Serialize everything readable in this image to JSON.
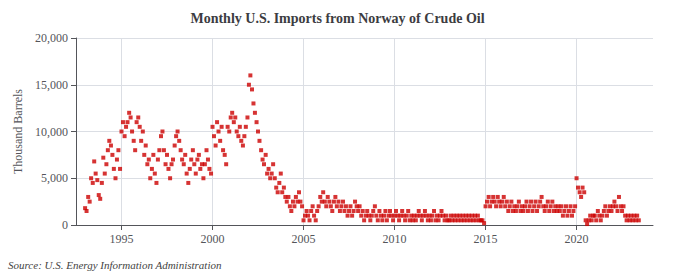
{
  "chart_data": {
    "type": "scatter",
    "title": "Monthly U.S. Imports from Norway of Crude Oil",
    "ylabel": "Thousand Barrels",
    "annotation": "Source: U.S. Energy Information Administration",
    "color": "#cc0000",
    "marker": "square",
    "grid": true,
    "xlim": [
      1992.5,
      2024.2
    ],
    "xticks": [
      1995,
      2000,
      2005,
      2010,
      2015,
      2020
    ],
    "ylim": [
      0,
      20000
    ],
    "yticks": [
      0,
      {
        "value": 5000,
        "label": "5,000"
      },
      {
        "value": 10000,
        "label": "10,000"
      },
      {
        "value": 15000,
        "label": "15,000"
      },
      {
        "value": 20000,
        "label": "20,000"
      }
    ],
    "x": [
      1993.0,
      1993.08,
      1993.17,
      1993.25,
      1993.33,
      1993.42,
      1993.5,
      1993.58,
      1993.67,
      1993.75,
      1993.83,
      1993.92,
      1994.0,
      1994.08,
      1994.17,
      1994.25,
      1994.33,
      1994.42,
      1994.5,
      1994.58,
      1994.67,
      1994.75,
      1994.83,
      1994.92,
      1995.0,
      1995.08,
      1995.17,
      1995.25,
      1995.33,
      1995.42,
      1995.5,
      1995.58,
      1995.67,
      1995.75,
      1995.83,
      1995.92,
      1996.0,
      1996.08,
      1996.17,
      1996.25,
      1996.33,
      1996.42,
      1996.5,
      1996.58,
      1996.67,
      1996.75,
      1996.83,
      1996.92,
      1997.0,
      1997.08,
      1997.17,
      1997.25,
      1997.33,
      1997.42,
      1997.5,
      1997.58,
      1997.67,
      1997.75,
      1997.83,
      1997.92,
      1998.0,
      1998.08,
      1998.17,
      1998.25,
      1998.33,
      1998.42,
      1998.5,
      1998.58,
      1998.67,
      1998.75,
      1998.83,
      1998.92,
      1999.0,
      1999.08,
      1999.17,
      1999.25,
      1999.33,
      1999.42,
      1999.5,
      1999.58,
      1999.67,
      1999.75,
      1999.83,
      1999.92,
      2000.0,
      2000.08,
      2000.17,
      2000.25,
      2000.33,
      2000.42,
      2000.5,
      2000.58,
      2000.67,
      2000.75,
      2000.83,
      2000.92,
      2001.0,
      2001.08,
      2001.17,
      2001.25,
      2001.33,
      2001.42,
      2001.5,
      2001.58,
      2001.67,
      2001.75,
      2001.83,
      2001.92,
      2002.0,
      2002.08,
      2002.17,
      2002.25,
      2002.33,
      2002.42,
      2002.5,
      2002.58,
      2002.67,
      2002.75,
      2002.83,
      2002.92,
      2003.0,
      2003.08,
      2003.17,
      2003.25,
      2003.33,
      2003.42,
      2003.5,
      2003.58,
      2003.67,
      2003.75,
      2003.83,
      2003.92,
      2004.0,
      2004.08,
      2004.17,
      2004.25,
      2004.33,
      2004.42,
      2004.5,
      2004.58,
      2004.67,
      2004.75,
      2004.83,
      2004.92,
      2005.0,
      2005.08,
      2005.17,
      2005.25,
      2005.33,
      2005.42,
      2005.5,
      2005.58,
      2005.67,
      2005.75,
      2005.83,
      2005.92,
      2006.0,
      2006.08,
      2006.17,
      2006.25,
      2006.33,
      2006.42,
      2006.5,
      2006.58,
      2006.67,
      2006.75,
      2006.83,
      2006.92,
      2007.0,
      2007.08,
      2007.17,
      2007.25,
      2007.33,
      2007.42,
      2007.5,
      2007.58,
      2007.67,
      2007.75,
      2007.83,
      2007.92,
      2008.0,
      2008.08,
      2008.17,
      2008.25,
      2008.33,
      2008.42,
      2008.5,
      2008.58,
      2008.67,
      2008.75,
      2008.83,
      2008.92,
      2009.0,
      2009.08,
      2009.17,
      2009.25,
      2009.33,
      2009.42,
      2009.5,
      2009.58,
      2009.67,
      2009.75,
      2009.83,
      2009.92,
      2010.0,
      2010.08,
      2010.17,
      2010.25,
      2010.33,
      2010.42,
      2010.5,
      2010.58,
      2010.67,
      2010.75,
      2010.83,
      2010.92,
      2011.0,
      2011.08,
      2011.17,
      2011.25,
      2011.33,
      2011.42,
      2011.5,
      2011.58,
      2011.67,
      2011.75,
      2011.83,
      2011.92,
      2012.0,
      2012.08,
      2012.17,
      2012.25,
      2012.33,
      2012.42,
      2012.5,
      2012.58,
      2012.67,
      2012.75,
      2012.83,
      2012.92,
      2013.0,
      2013.08,
      2013.17,
      2013.25,
      2013.33,
      2013.42,
      2013.5,
      2013.58,
      2013.67,
      2013.75,
      2013.83,
      2013.92,
      2014.0,
      2014.08,
      2014.17,
      2014.25,
      2014.33,
      2014.42,
      2014.5,
      2014.58,
      2014.67,
      2014.75,
      2014.83,
      2014.92,
      2015.0,
      2015.08,
      2015.17,
      2015.25,
      2015.33,
      2015.42,
      2015.5,
      2015.58,
      2015.67,
      2015.75,
      2015.83,
      2015.92,
      2016.0,
      2016.08,
      2016.17,
      2016.25,
      2016.33,
      2016.42,
      2016.5,
      2016.58,
      2016.67,
      2016.75,
      2016.83,
      2016.92,
      2017.0,
      2017.08,
      2017.17,
      2017.25,
      2017.33,
      2017.42,
      2017.5,
      2017.58,
      2017.67,
      2017.75,
      2017.83,
      2017.92,
      2018.0,
      2018.08,
      2018.17,
      2018.25,
      2018.33,
      2018.42,
      2018.5,
      2018.58,
      2018.67,
      2018.75,
      2018.83,
      2018.92,
      2019.0,
      2019.08,
      2019.17,
      2019.25,
      2019.33,
      2019.42,
      2019.5,
      2019.58,
      2019.67,
      2019.75,
      2019.83,
      2019.92,
      2020.0,
      2020.08,
      2020.17,
      2020.25,
      2020.33,
      2020.42,
      2020.5,
      2020.58,
      2020.67,
      2020.75,
      2020.83,
      2020.92,
      2021.0,
      2021.08,
      2021.17,
      2021.25,
      2021.33,
      2021.42,
      2021.5,
      2021.58,
      2021.67,
      2021.75,
      2021.83,
      2021.92,
      2022.0,
      2022.08,
      2022.17,
      2022.25,
      2022.33,
      2022.42,
      2022.5,
      2022.58,
      2022.67,
      2022.75,
      2022.83,
      2022.92,
      2023.0,
      2023.08,
      2023.17,
      2023.25,
      2023.33,
      2023.42
    ],
    "values": [
      1800,
      1500,
      3000,
      2500,
      5000,
      4500,
      6800,
      5500,
      4800,
      3200,
      2800,
      4500,
      7200,
      5500,
      6500,
      8000,
      9000,
      8500,
      7500,
      6000,
      5000,
      7000,
      8000,
      6000,
      10000,
      11000,
      9500,
      10500,
      11000,
      12000,
      11500,
      10000,
      9000,
      8000,
      11000,
      11500,
      10500,
      9000,
      10000,
      7500,
      8500,
      6500,
      7000,
      5000,
      6000,
      7500,
      5500,
      4500,
      7000,
      8000,
      9500,
      10000,
      8000,
      6500,
      7500,
      6000,
      5000,
      6500,
      7000,
      8500,
      9500,
      10000,
      9000,
      8000,
      7000,
      6500,
      7500,
      5500,
      4500,
      6000,
      7000,
      8000,
      6500,
      5500,
      7000,
      7500,
      6000,
      6500,
      5000,
      6500,
      8000,
      7000,
      6000,
      5500,
      10500,
      9500,
      8500,
      11000,
      10000,
      9000,
      10500,
      8000,
      7500,
      6500,
      10500,
      10000,
      11500,
      12000,
      11000,
      11500,
      10000,
      9500,
      10500,
      9000,
      8500,
      9500,
      10500,
      11500,
      15000,
      16000,
      14500,
      13000,
      12000,
      11000,
      10000,
      9000,
      8000,
      7000,
      6500,
      7500,
      5500,
      6000,
      5000,
      5500,
      6500,
      5000,
      4000,
      3500,
      4500,
      5500,
      3500,
      4000,
      3000,
      2500,
      3000,
      2000,
      1500,
      2500,
      2000,
      3000,
      2500,
      3500,
      2500,
      2000,
      500,
      1000,
      1500,
      1000,
      500,
      1500,
      2000,
      1000,
      500,
      1500,
      2000,
      3000,
      2500,
      3500,
      2500,
      2000,
      3000,
      2500,
      2000,
      1500,
      2500,
      3000,
      2000,
      2500,
      1500,
      2000,
      2500,
      1500,
      2000,
      1000,
      1500,
      2000,
      1000,
      1500,
      2500,
      2000,
      1500,
      2000,
      1000,
      1500,
      500,
      1000,
      1500,
      1000,
      500,
      1000,
      1500,
      2000,
      1000,
      500,
      1500,
      1000,
      500,
      1000,
      1500,
      500,
      1000,
      1500,
      1000,
      500,
      1000,
      1500,
      1000,
      500,
      1000,
      1500,
      1000,
      500,
      1000,
      1500,
      500,
      1000,
      500,
      1000,
      500,
      1000,
      1500,
      1000,
      500,
      1000,
      1500,
      1000,
      500,
      1000,
      500,
      1000,
      1500,
      500,
      1000,
      500,
      1000,
      1500,
      1000,
      500,
      1000,
      500,
      500,
      1000,
      500,
      1000,
      500,
      1000,
      500,
      1000,
      500,
      1000,
      500,
      1000,
      500,
      1000,
      500,
      1000,
      500,
      1000,
      500,
      1000,
      500,
      500,
      500,
      200,
      2000,
      2500,
      3000,
      2000,
      2500,
      3000,
      2500,
      2000,
      3000,
      2500,
      2000,
      2500,
      3000,
      2000,
      2500,
      1500,
      2000,
      2500,
      1500,
      2000,
      1500,
      2000,
      2500,
      1500,
      2000,
      1500,
      2000,
      2500,
      1500,
      2000,
      2500,
      1500,
      2000,
      2500,
      1500,
      2000,
      2500,
      3000,
      2000,
      1500,
      2000,
      2500,
      1500,
      2000,
      2500,
      1500,
      2000,
      1500,
      2000,
      1500,
      2000,
      1000,
      1500,
      2000,
      1000,
      1500,
      2000,
      1000,
      1500,
      2000,
      5000,
      4000,
      3500,
      3000,
      4000,
      3500,
      500,
      100,
      500,
      1000,
      500,
      1000,
      1000,
      500,
      1500,
      1000,
      500,
      1000,
      1500,
      2000,
      1000,
      1500,
      2000,
      1500,
      2000,
      2500,
      2000,
      1500,
      3000,
      2000,
      1500,
      2000,
      1000,
      500,
      1000,
      500,
      1000,
      500,
      1000,
      500,
      1000,
      500
    ]
  }
}
